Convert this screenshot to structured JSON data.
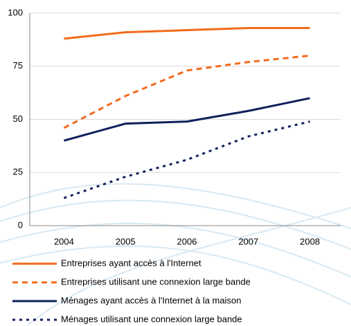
{
  "chart_data": {
    "type": "line",
    "categories": [
      "2004",
      "2005",
      "2006",
      "2007",
      "2008"
    ],
    "series": [
      {
        "name": "Entreprises ayant accès à l'Internet",
        "color": "#f26a1b",
        "style": "solid",
        "values": [
          88,
          91,
          92,
          93,
          93
        ]
      },
      {
        "name": "Entreprises utilisant une connexion large bande",
        "color": "#f26a1b",
        "style": "dashed",
        "values": [
          46,
          61,
          73,
          77,
          80
        ]
      },
      {
        "name": "Ménages ayant accès à l'Internet à la maison",
        "color": "#0f1f5c",
        "style": "solid",
        "values": [
          40,
          48,
          49,
          54,
          60
        ]
      },
      {
        "name": "Ménages utilisant une connexion large bande",
        "color": "#0f1f5c",
        "style": "dotted",
        "values": [
          13,
          23,
          31,
          42,
          49
        ]
      }
    ],
    "ylim": [
      0,
      100
    ],
    "yticks": [
      0,
      25,
      50,
      75,
      100
    ],
    "grid": true
  }
}
